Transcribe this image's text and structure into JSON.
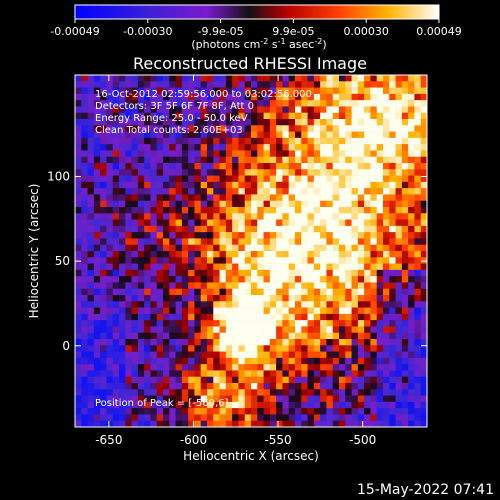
{
  "colorbar": {
    "tick_labels": [
      "-0.00049",
      "-0.00030",
      "-9.9e-05",
      "9.9e-05",
      "0.00030",
      "0.00049"
    ],
    "unit_label": "(photons cm-2 s-1 asec-2)"
  },
  "chart_data": {
    "type": "heatmap",
    "title": "Reconstructed RHESSI Image",
    "xlabel": "Heliocentric X (arcsec)",
    "ylabel": "Heliocentric Y (arcsec)",
    "xlim": [
      -670,
      -462
    ],
    "ylim": [
      -48,
      160
    ],
    "x_ticks": [
      -650,
      -600,
      -550,
      -500
    ],
    "y_ticks": [
      0,
      50,
      100
    ],
    "x_tick_labels": [
      "-650",
      "-600",
      "-550",
      "-500"
    ],
    "y_tick_labels": [
      "0",
      "50",
      "100"
    ],
    "color_range": [
      -0.00049,
      0.00049
    ],
    "grid": false,
    "annotations": {
      "time_range": "16-Oct-2012 02:59:56.000 to 03:02:56.000",
      "detectors": "Detectors: 3F 5F 6F 7F 8F, Att 0",
      "energy_range": "Energy Range: 25.0 - 50.0 keV",
      "clean_counts": "Clean     Total counts: 2.60E+03",
      "peak_position": "Position of Peak = [-560,6]"
    },
    "peak": {
      "x": -560,
      "y": 6
    }
  },
  "footer": {
    "timestamp": "15-May-2022 07:41"
  }
}
